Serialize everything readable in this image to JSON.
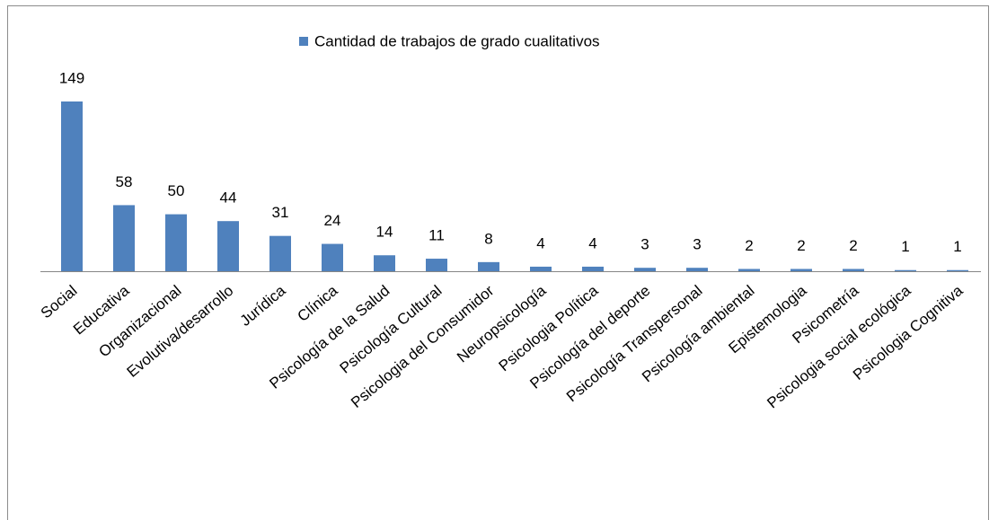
{
  "chart_data": {
    "type": "bar",
    "categories": [
      "Social",
      "Educativa",
      "Organizacional",
      "Evolutiva/desarrollo",
      "Jurídica",
      "Clínica",
      "Psicología de la Salud",
      "Psicología Cultural",
      "Psicologia del Consumidor",
      "Neuropsicología",
      "Psicologia Política",
      "Psicología del deporte",
      "Psicología Transpersonal",
      "Psicología ambiental",
      "Epistemologia",
      "Psicometría",
      "Psicologia social ecológica",
      "Psicologia Cognitiva"
    ],
    "series": [
      {
        "name": "Cantidad de trabajos de grado cualitativos",
        "color": "#4f81bd",
        "values": [
          149,
          58,
          50,
          44,
          31,
          24,
          14,
          11,
          8,
          4,
          4,
          3,
          3,
          2,
          2,
          2,
          1,
          1
        ]
      }
    ],
    "legend": "top"
  }
}
